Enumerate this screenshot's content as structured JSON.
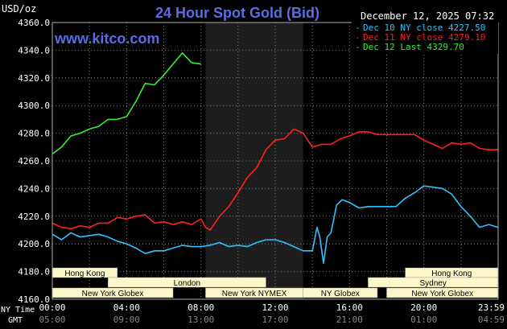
{
  "header": {
    "unit": "USD/oz",
    "title": "24 Hour Spot Gold (Bid)",
    "date": "December 12, 2025 07:32",
    "watermark": "www.kitco.com"
  },
  "colors": {
    "background": "#000000",
    "title": "#5a6de6",
    "grid": "#808080",
    "text": "#ffffff",
    "session_bg": "#fdf6c8",
    "session_text": "#000000",
    "nymex_band": "#1d1d1d"
  },
  "legend": [
    {
      "text": "Dec 10 NY close 4227.50",
      "color": "#2fc2ff"
    },
    {
      "text": "Dec 11 NY close 4279.10",
      "color": "#ff2020"
    },
    {
      "text": "Dec 12 Last 4329.70",
      "color": "#33ee33"
    }
  ],
  "sessions": [
    {
      "label": "Hong Kong",
      "start": 0,
      "end": 3.5
    },
    {
      "label": "London",
      "start": 3,
      "end": 11.5
    },
    {
      "label": "New York Globex",
      "start": 0,
      "end": 6.5
    },
    {
      "label": "New York NYMEX",
      "start": 8.25,
      "end": 13.5
    },
    {
      "label": "NY Globex",
      "start": 13.5,
      "end": 17.5
    },
    {
      "label": "Hong Kong",
      "start": 19,
      "end": 24
    },
    {
      "label": "Sydney",
      "start": 17,
      "end": 24
    },
    {
      "label": "New York Globex",
      "start": 18,
      "end": 24
    }
  ],
  "time_labels": {
    "ny_label": "NY Time",
    "gmt_label": "GMT",
    "ny": [
      "00:00",
      "04:00",
      "08:00",
      "12:00",
      "16:00",
      "20:00",
      "23:59"
    ],
    "gmt": [
      "05:00",
      "09:00",
      "13:00",
      "17:00",
      "21:00",
      "01:00",
      "04:59"
    ]
  },
  "chart_data": {
    "type": "line",
    "title": "24 Hour Spot Gold (Bid)",
    "ylabel": "USD/oz",
    "xlim": [
      0,
      24
    ],
    "ylim": [
      4160,
      4360
    ],
    "yticks": [
      "4360.0",
      "4340.0",
      "4320.0",
      "4300.0",
      "4280.0",
      "4260.0",
      "4240.0",
      "4220.0",
      "4200.0",
      "4180.0",
      "4160.0"
    ],
    "grid": true,
    "legend_position": "top-right",
    "nymex_shaded": [
      8.25,
      13.5
    ],
    "series": [
      {
        "name": "Dec 10 NY close 4227.50",
        "color": "#2fc2ff",
        "points": [
          [
            0,
            4207
          ],
          [
            0.5,
            4203
          ],
          [
            1,
            4208
          ],
          [
            1.5,
            4205
          ],
          [
            2,
            4206
          ],
          [
            2.5,
            4207
          ],
          [
            3,
            4205
          ],
          [
            3.5,
            4202
          ],
          [
            4,
            4200
          ],
          [
            4.5,
            4197
          ],
          [
            5,
            4193
          ],
          [
            5.5,
            4195
          ],
          [
            6,
            4195
          ],
          [
            6.5,
            4197
          ],
          [
            7,
            4199
          ],
          [
            7.5,
            4198
          ],
          [
            8,
            4198
          ],
          [
            8.5,
            4199
          ],
          [
            9,
            4201
          ],
          [
            9.5,
            4198
          ],
          [
            10,
            4199
          ],
          [
            10.5,
            4198
          ],
          [
            11,
            4201
          ],
          [
            11.5,
            4203
          ],
          [
            12,
            4203
          ],
          [
            12.5,
            4201
          ],
          [
            13,
            4198
          ],
          [
            13.5,
            4195
          ],
          [
            14,
            4195
          ],
          [
            14.25,
            4212
          ],
          [
            14.4,
            4205
          ],
          [
            14.6,
            4186
          ],
          [
            14.8,
            4205
          ],
          [
            15,
            4208
          ],
          [
            15.3,
            4228
          ],
          [
            15.6,
            4232
          ],
          [
            16,
            4230
          ],
          [
            16.5,
            4226
          ],
          [
            17,
            4227
          ],
          [
            17.5,
            4227
          ],
          [
            18,
            4227
          ],
          [
            18.5,
            4227
          ],
          [
            19,
            4233
          ],
          [
            19.5,
            4237
          ],
          [
            20,
            4242
          ],
          [
            20.5,
            4241
          ],
          [
            21,
            4240
          ],
          [
            21.5,
            4236
          ],
          [
            22,
            4227
          ],
          [
            22.5,
            4220
          ],
          [
            23,
            4212
          ],
          [
            23.5,
            4214
          ],
          [
            23.99,
            4212
          ]
        ]
      },
      {
        "name": "Dec 11 NY close 4279.10",
        "color": "#ff2020",
        "points": [
          [
            0,
            4215
          ],
          [
            0.5,
            4212
          ],
          [
            1,
            4211
          ],
          [
            1.5,
            4213
          ],
          [
            2,
            4212
          ],
          [
            2.5,
            4215
          ],
          [
            3,
            4215
          ],
          [
            3.5,
            4219
          ],
          [
            4,
            4218
          ],
          [
            4.5,
            4220
          ],
          [
            5,
            4221
          ],
          [
            5.5,
            4215
          ],
          [
            6,
            4216
          ],
          [
            6.5,
            4214
          ],
          [
            7,
            4216
          ],
          [
            7.5,
            4214
          ],
          [
            8,
            4218
          ],
          [
            8.25,
            4212
          ],
          [
            8.5,
            4210
          ],
          [
            9,
            4220
          ],
          [
            9.5,
            4227
          ],
          [
            10,
            4237
          ],
          [
            10.5,
            4248
          ],
          [
            11,
            4255
          ],
          [
            11.5,
            4268
          ],
          [
            12,
            4275
          ],
          [
            12.5,
            4276
          ],
          [
            13,
            4283
          ],
          [
            13.5,
            4280
          ],
          [
            14,
            4270
          ],
          [
            14.5,
            4272
          ],
          [
            15,
            4272
          ],
          [
            15.5,
            4276
          ],
          [
            16,
            4278
          ],
          [
            16.5,
            4281
          ],
          [
            17,
            4281
          ],
          [
            17.5,
            4279
          ],
          [
            18,
            4279
          ],
          [
            18.5,
            4279
          ],
          [
            19,
            4279
          ],
          [
            19.5,
            4279
          ],
          [
            20,
            4275
          ],
          [
            20.5,
            4272
          ],
          [
            21,
            4269
          ],
          [
            21.5,
            4273
          ],
          [
            22,
            4272
          ],
          [
            22.5,
            4273
          ],
          [
            23,
            4269
          ],
          [
            23.5,
            4268
          ],
          [
            23.99,
            4268
          ]
        ]
      },
      {
        "name": "Dec 12 Last 4329.70",
        "color": "#33ee33",
        "points": [
          [
            0,
            4265
          ],
          [
            0.5,
            4270
          ],
          [
            1,
            4278
          ],
          [
            1.5,
            4280
          ],
          [
            2,
            4283
          ],
          [
            2.5,
            4285
          ],
          [
            3,
            4290
          ],
          [
            3.5,
            4290
          ],
          [
            4,
            4292
          ],
          [
            4.5,
            4303
          ],
          [
            5,
            4316
          ],
          [
            5.5,
            4315
          ],
          [
            6,
            4322
          ],
          [
            6.5,
            4330
          ],
          [
            7,
            4338
          ],
          [
            7.5,
            4331
          ],
          [
            8,
            4330
          ]
        ]
      }
    ]
  }
}
